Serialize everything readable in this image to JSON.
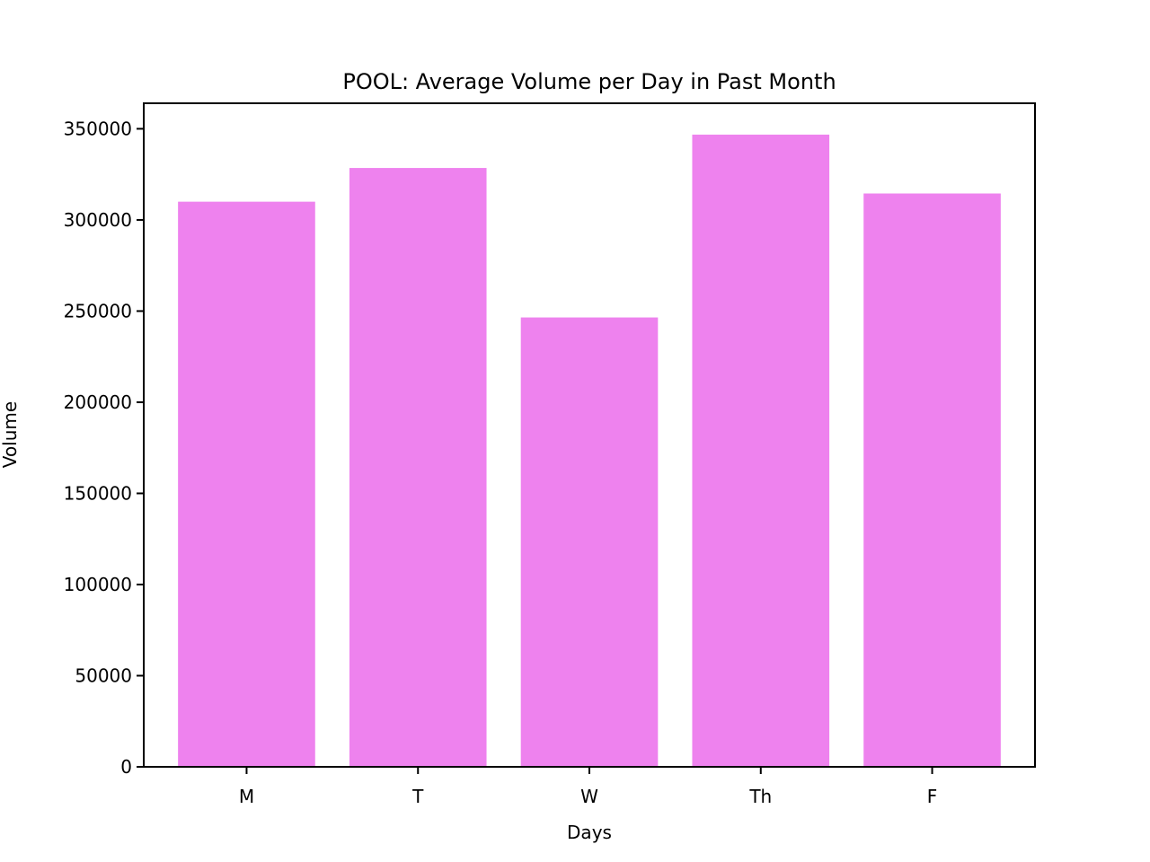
{
  "chart_data": {
    "type": "bar",
    "title": "POOL: Average Volume per Day in Past Month",
    "xlabel": "Days",
    "ylabel": "Volume",
    "categories": [
      "M",
      "T",
      "W",
      "Th",
      "F"
    ],
    "values": [
      310000,
      328500,
      246500,
      346800,
      314500
    ],
    "ylim": [
      0,
      364000
    ],
    "yticks": [
      0,
      50000,
      100000,
      150000,
      200000,
      250000,
      300000,
      350000
    ],
    "ytick_labels": [
      "0",
      "50000",
      "100000",
      "150000",
      "200000",
      "250000",
      "300000",
      "350000"
    ],
    "bar_color": "#ee82ee",
    "grid": false,
    "legend": "none"
  }
}
